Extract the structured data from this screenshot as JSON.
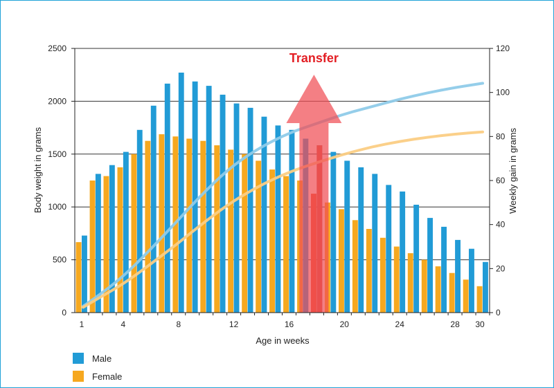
{
  "chart_data": {
    "type": "bar",
    "xlabel": "Age in weeks",
    "ylabel_left": "Body weight in grams",
    "ylabel_right": "Weekly gain in grams",
    "annotation": "Transfer",
    "annotation_week": 18,
    "ylim_left": [
      0,
      2500
    ],
    "ylim_right": [
      0,
      120
    ],
    "yticks_left": [
      0,
      500,
      1000,
      1500,
      2000,
      2500
    ],
    "yticks_right": [
      0,
      20,
      40,
      60,
      80,
      100,
      120
    ],
    "xticks": [
      1,
      4,
      8,
      12,
      16,
      20,
      24,
      28,
      30
    ],
    "grid": true,
    "colors": {
      "male": "#219bd6",
      "female": "#f6a81f",
      "male_curve": "#8fcbe9",
      "female_curve": "#fbcd84",
      "arrow": "#f04e54",
      "annotation_text": "#e31e24",
      "highlight": "#ef4b2c"
    },
    "weeks": [
      1,
      2,
      3,
      4,
      5,
      6,
      7,
      8,
      9,
      10,
      11,
      12,
      13,
      14,
      15,
      16,
      17,
      18,
      19,
      20,
      21,
      22,
      23,
      24,
      25,
      26,
      27,
      28,
      29,
      30
    ],
    "bar_series": [
      {
        "name": "Male",
        "axis": "right",
        "values": [
          35,
          63,
          67,
          73,
          83,
          94,
          104,
          109,
          105,
          103,
          99,
          95,
          93,
          89,
          85,
          83,
          79,
          76,
          73,
          69,
          66,
          63,
          58,
          55,
          49,
          43,
          39,
          33,
          29,
          23
        ]
      },
      {
        "name": "Female",
        "axis": "right",
        "values": [
          32,
          60,
          62,
          66,
          72,
          78,
          81,
          80,
          79,
          78,
          76,
          74,
          72,
          69,
          65,
          62,
          60,
          54,
          50,
          47,
          42,
          38,
          34,
          30,
          27,
          24,
          21,
          18,
          15,
          12
        ]
      }
    ],
    "curve_series": [
      {
        "name": "Male",
        "axis": "left",
        "x": [
          1,
          2,
          4,
          6,
          8,
          10,
          12,
          14,
          16,
          18,
          20,
          22,
          24,
          26,
          28,
          30
        ],
        "values": [
          60,
          140,
          340,
          600,
          880,
          1160,
          1400,
          1570,
          1700,
          1790,
          1880,
          1950,
          2020,
          2080,
          2130,
          2170
        ]
      },
      {
        "name": "Female",
        "axis": "left",
        "x": [
          1,
          2,
          4,
          6,
          8,
          10,
          12,
          14,
          16,
          18,
          20,
          22,
          24,
          26,
          28,
          30
        ],
        "values": [
          50,
          120,
          270,
          460,
          660,
          870,
          1060,
          1210,
          1330,
          1420,
          1500,
          1570,
          1620,
          1660,
          1690,
          1710
        ]
      }
    ],
    "legend": [
      {
        "label": "Male",
        "color": "#219bd6"
      },
      {
        "label": "Female",
        "color": "#f6a81f"
      }
    ]
  }
}
